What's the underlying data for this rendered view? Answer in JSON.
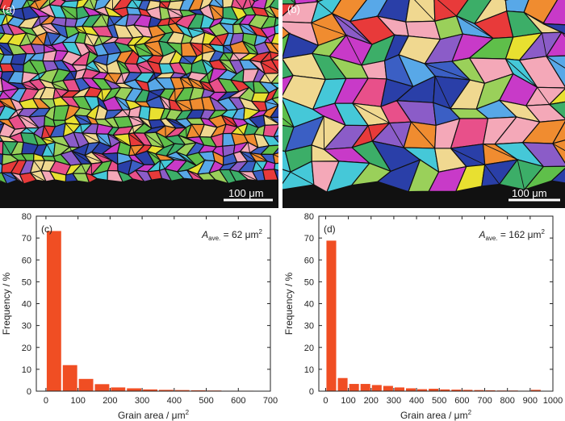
{
  "maps": [
    {
      "label": "(a)",
      "scale_label": "100 μm"
    },
    {
      "label": "(b)",
      "scale_label": "100 μm"
    }
  ],
  "colors": {
    "bar": "#f04e23",
    "grain_palette": [
      "#3b5fc4",
      "#5fbf4a",
      "#e8e030",
      "#45c8d8",
      "#8b5cc8",
      "#e8508a",
      "#f08c30",
      "#2a3fa8",
      "#9ad05a",
      "#c83ac8",
      "#f4a8b8",
      "#58a8e8",
      "#3cae68",
      "#f0d890",
      "#e83a3a"
    ]
  },
  "chart_data": [
    {
      "type": "bar",
      "panel_label": "(c)",
      "annotation": {
        "prefix": "A",
        "sub": "ave.",
        "text": " = 62 μm",
        "sup": "2"
      },
      "xlabel": "Grain area / μm",
      "xlabel_sup": "2",
      "ylabel": "Frequency / %",
      "xlim": [
        -30,
        700
      ],
      "ylim": [
        0,
        80
      ],
      "xticks": [
        0,
        100,
        200,
        300,
        400,
        500,
        600,
        700
      ],
      "yticks": [
        0,
        10,
        20,
        30,
        40,
        50,
        60,
        70,
        80
      ],
      "bin_width": 50,
      "bin_centers": [
        25,
        75,
        125,
        175,
        225,
        275,
        325,
        375,
        425,
        475,
        525,
        575,
        625,
        675
      ],
      "values": [
        73.2,
        11.9,
        5.6,
        3.2,
        1.7,
        1.3,
        0.8,
        0.6,
        0.5,
        0.4,
        0.3,
        0.2,
        0.2,
        0.1
      ]
    },
    {
      "type": "bar",
      "panel_label": "(d)",
      "annotation": {
        "prefix": "A",
        "sub": "ave.",
        "text": " = 162 μm",
        "sup": "2"
      },
      "xlabel": "Grain area / μm",
      "xlabel_sup": "2",
      "ylabel": "Frequency / %",
      "xlim": [
        -30,
        1000
      ],
      "ylim": [
        0,
        80
      ],
      "xticks": [
        0,
        100,
        200,
        300,
        400,
        500,
        600,
        700,
        800,
        900,
        1000
      ],
      "yticks": [
        0,
        10,
        20,
        30,
        40,
        50,
        60,
        70,
        80
      ],
      "bin_width": 50,
      "bin_centers": [
        25,
        75,
        125,
        175,
        225,
        275,
        325,
        375,
        425,
        475,
        525,
        575,
        625,
        675,
        725,
        775,
        825,
        875,
        925
      ],
      "values": [
        68.8,
        6.0,
        3.3,
        3.3,
        2.8,
        2.4,
        1.7,
        1.3,
        0.9,
        1.1,
        0.8,
        0.7,
        0.6,
        0.5,
        0.4,
        0.3,
        0.3,
        0.2,
        0.6
      ]
    }
  ]
}
